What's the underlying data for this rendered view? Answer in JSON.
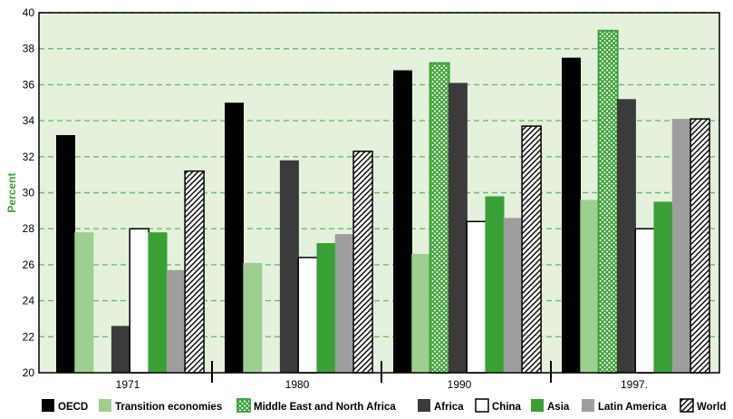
{
  "chart_data": {
    "type": "bar",
    "ylabel": "Percent",
    "ylim": [
      20,
      40
    ],
    "yticks": [
      20,
      22,
      24,
      26,
      28,
      30,
      32,
      34,
      36,
      38,
      40
    ],
    "grid": true,
    "legend_position": "bottom",
    "categories": [
      "1971",
      "1980",
      "1990",
      "1997."
    ],
    "series": [
      {
        "name": "OECD",
        "values": [
          33.2,
          35.0,
          36.8,
          37.5
        ],
        "color": "#000000",
        "pattern": "solid"
      },
      {
        "name": "Transition economies",
        "values": [
          27.8,
          26.1,
          26.6,
          29.6
        ],
        "color": "#9ccf90",
        "pattern": "solid"
      },
      {
        "name": "Middle East and North Africa",
        "values": [
          null,
          null,
          37.2,
          39.0
        ],
        "color": "#3aa035",
        "pattern": "crosshatch"
      },
      {
        "name": "Africa",
        "values": [
          22.6,
          31.8,
          36.1,
          35.2
        ],
        "color": "#3b3b3b",
        "pattern": "solid"
      },
      {
        "name": "China",
        "values": [
          28.0,
          26.4,
          28.4,
          28.0
        ],
        "color": "#ffffff",
        "pattern": "outline"
      },
      {
        "name": "Asia",
        "values": [
          27.8,
          27.2,
          29.8,
          29.5
        ],
        "color": "#3aa035",
        "pattern": "solid"
      },
      {
        "name": "Latin America",
        "values": [
          25.7,
          27.7,
          28.6,
          34.1
        ],
        "color": "#9e9e9e",
        "pattern": "solid"
      },
      {
        "name": "World",
        "values": [
          31.2,
          32.3,
          33.7,
          34.1
        ],
        "color": "#000000",
        "pattern": "diagonal"
      }
    ],
    "colors": {
      "plot_background": "#e3f1dd",
      "grid": "#6dbf63",
      "axis_label": "#3aa035"
    }
  }
}
